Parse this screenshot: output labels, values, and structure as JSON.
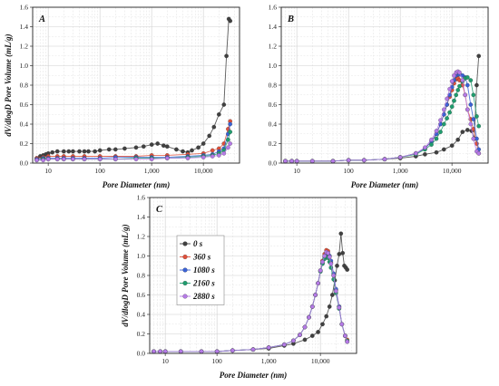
{
  "colors": {
    "0 s": "#404040",
    "360 s": "#e0503a",
    "1080 s": "#3a62d6",
    "2160 s": "#1f9d6e",
    "2880 s": "#b57ae6"
  },
  "legend": {
    "placement": "upper-left",
    "panel": "C"
  },
  "chart_data": [
    {
      "type": "line",
      "panel_label": "A",
      "xlabel": "Pore Diameter (nm)",
      "ylabel": "dV/dlogD Pore Volume (mL/g)",
      "xscale": "log",
      "xlim": [
        5,
        50000
      ],
      "ylim": [
        0,
        1.6
      ],
      "xticks": [
        10,
        100,
        1000,
        10000
      ],
      "xtick_labels": [
        "10",
        "100",
        "1,000",
        "10,000"
      ],
      "yticks": [
        0,
        0.2,
        0.4,
        0.6,
        0.8,
        1.0,
        1.2,
        1.4,
        1.6
      ],
      "ytick_labels": [
        "0.0",
        "0.2",
        "0.4",
        "0.6",
        "0.8",
        "1.0",
        "1.2",
        "1.4",
        "1.6"
      ],
      "grid": true,
      "series": [
        {
          "name": "0 s",
          "x": [
            6,
            7,
            8,
            9,
            10,
            12,
            15,
            20,
            25,
            30,
            40,
            50,
            60,
            80,
            100,
            150,
            200,
            300,
            500,
            700,
            1000,
            1300,
            1700,
            2000,
            3000,
            4000,
            5000,
            6000,
            8000,
            10000,
            13000,
            16000,
            20000,
            25000,
            28000,
            31000,
            33000
          ],
          "y": [
            0.05,
            0.07,
            0.08,
            0.09,
            0.1,
            0.11,
            0.12,
            0.12,
            0.12,
            0.12,
            0.12,
            0.12,
            0.12,
            0.12,
            0.13,
            0.14,
            0.14,
            0.15,
            0.16,
            0.17,
            0.19,
            0.2,
            0.18,
            0.17,
            0.14,
            0.12,
            0.11,
            0.13,
            0.16,
            0.2,
            0.28,
            0.37,
            0.5,
            0.6,
            1.1,
            1.48,
            1.46
          ]
        },
        {
          "name": "360 s",
          "x": [
            6,
            8,
            10,
            15,
            20,
            30,
            50,
            100,
            200,
            500,
            1000,
            2000,
            5000,
            10000,
            15000,
            20000,
            25000,
            30000,
            33000
          ],
          "y": [
            0.05,
            0.06,
            0.07,
            0.07,
            0.07,
            0.07,
            0.07,
            0.07,
            0.07,
            0.07,
            0.08,
            0.08,
            0.09,
            0.1,
            0.13,
            0.15,
            0.2,
            0.35,
            0.43
          ]
        },
        {
          "name": "1080 s",
          "x": [
            6,
            8,
            10,
            15,
            20,
            30,
            50,
            100,
            200,
            500,
            1000,
            2000,
            5000,
            10000,
            15000,
            20000,
            25000,
            30000,
            33000
          ],
          "y": [
            0.04,
            0.05,
            0.05,
            0.05,
            0.05,
            0.05,
            0.05,
            0.05,
            0.06,
            0.06,
            0.06,
            0.06,
            0.07,
            0.08,
            0.09,
            0.12,
            0.15,
            0.3,
            0.4
          ]
        },
        {
          "name": "2160 s",
          "x": [
            6,
            8,
            10,
            15,
            20,
            30,
            50,
            100,
            200,
            500,
            1000,
            2000,
            5000,
            10000,
            15000,
            20000,
            25000,
            30000,
            33000
          ],
          "y": [
            0.03,
            0.04,
            0.04,
            0.04,
            0.04,
            0.04,
            0.04,
            0.04,
            0.04,
            0.05,
            0.05,
            0.05,
            0.06,
            0.07,
            0.08,
            0.1,
            0.13,
            0.24,
            0.32
          ]
        },
        {
          "name": "2880 s",
          "x": [
            6,
            8,
            10,
            15,
            20,
            30,
            50,
            100,
            200,
            500,
            1000,
            2000,
            5000,
            10000,
            15000,
            20000,
            25000,
            30000,
            33000
          ],
          "y": [
            0.03,
            0.03,
            0.04,
            0.04,
            0.04,
            0.04,
            0.04,
            0.04,
            0.04,
            0.04,
            0.04,
            0.05,
            0.05,
            0.06,
            0.07,
            0.08,
            0.1,
            0.16,
            0.2
          ]
        }
      ]
    },
    {
      "type": "line",
      "panel_label": "B",
      "xlabel": "Pore Diameter (nm)",
      "ylabel": "",
      "xscale": "log",
      "xlim": [
        5,
        50000
      ],
      "ylim": [
        0,
        1.6
      ],
      "xticks": [
        10,
        100,
        1000,
        10000
      ],
      "xtick_labels": [
        "10",
        "100",
        "1,000",
        "10,000"
      ],
      "yticks": [
        0,
        0.2,
        0.4,
        0.6,
        0.8,
        1.0,
        1.2,
        1.4,
        1.6
      ],
      "ytick_labels": [
        "0.0",
        "0.2",
        "0.4",
        "0.6",
        "0.8",
        "1.0",
        "1.2",
        "1.4",
        "1.6"
      ],
      "grid": true,
      "series": [
        {
          "name": "0 s",
          "x": [
            6,
            8,
            10,
            20,
            50,
            100,
            200,
            500,
            1000,
            2000,
            3000,
            5000,
            7000,
            10000,
            13000,
            16000,
            20000,
            24000,
            27000,
            30000,
            33000
          ],
          "y": [
            0.02,
            0.02,
            0.02,
            0.02,
            0.02,
            0.03,
            0.03,
            0.04,
            0.05,
            0.07,
            0.09,
            0.11,
            0.14,
            0.18,
            0.24,
            0.32,
            0.34,
            0.33,
            0.25,
            0.8,
            1.1
          ]
        },
        {
          "name": "360 s",
          "x": [
            6,
            8,
            10,
            20,
            50,
            100,
            200,
            500,
            1000,
            2000,
            3000,
            4000,
            5000,
            6000,
            7000,
            8000,
            9000,
            10000,
            11000,
            12000,
            13000,
            14000,
            16000,
            18000,
            20000,
            23000,
            26000,
            30000,
            33000
          ],
          "y": [
            0.02,
            0.02,
            0.02,
            0.02,
            0.02,
            0.03,
            0.03,
            0.04,
            0.06,
            0.1,
            0.15,
            0.22,
            0.3,
            0.4,
            0.5,
            0.6,
            0.68,
            0.75,
            0.82,
            0.86,
            0.87,
            0.85,
            0.8,
            0.7,
            0.55,
            0.45,
            0.35,
            0.2,
            0.1
          ]
        },
        {
          "name": "1080 s",
          "x": [
            6,
            8,
            10,
            20,
            50,
            100,
            200,
            500,
            1000,
            2000,
            3000,
            4000,
            5000,
            6000,
            7000,
            8000,
            9000,
            10000,
            11000,
            12000,
            13000,
            14000,
            16000,
            18000,
            20000,
            23000,
            26000,
            30000,
            33000
          ],
          "y": [
            0.02,
            0.02,
            0.02,
            0.02,
            0.02,
            0.03,
            0.03,
            0.04,
            0.06,
            0.1,
            0.15,
            0.22,
            0.3,
            0.4,
            0.5,
            0.6,
            0.7,
            0.78,
            0.85,
            0.9,
            0.91,
            0.91,
            0.9,
            0.88,
            0.8,
            0.6,
            0.45,
            0.25,
            0.14
          ]
        },
        {
          "name": "2160 s",
          "x": [
            6,
            8,
            10,
            20,
            50,
            100,
            200,
            500,
            1000,
            2000,
            3000,
            4000,
            5000,
            6000,
            7000,
            8000,
            9000,
            10000,
            11000,
            12000,
            13000,
            14000,
            16000,
            18000,
            20000,
            23000,
            26000,
            30000,
            33000
          ],
          "y": [
            0.02,
            0.02,
            0.02,
            0.02,
            0.02,
            0.03,
            0.03,
            0.04,
            0.06,
            0.09,
            0.14,
            0.19,
            0.25,
            0.32,
            0.4,
            0.46,
            0.52,
            0.58,
            0.64,
            0.7,
            0.75,
            0.79,
            0.84,
            0.87,
            0.88,
            0.85,
            0.7,
            0.48,
            0.38
          ]
        },
        {
          "name": "2880 s",
          "x": [
            6,
            8,
            10,
            20,
            50,
            100,
            200,
            500,
            1000,
            2000,
            3000,
            4000,
            5000,
            6000,
            7000,
            8000,
            9000,
            10000,
            11000,
            12000,
            13000,
            14000,
            16000,
            18000,
            20000,
            23000,
            26000,
            30000,
            33000
          ],
          "y": [
            0.02,
            0.02,
            0.02,
            0.02,
            0.02,
            0.03,
            0.03,
            0.04,
            0.06,
            0.1,
            0.16,
            0.24,
            0.33,
            0.44,
            0.55,
            0.66,
            0.76,
            0.84,
            0.9,
            0.93,
            0.94,
            0.93,
            0.85,
            0.7,
            0.55,
            0.4,
            0.25,
            0.12,
            0.1
          ]
        }
      ]
    },
    {
      "type": "line",
      "panel_label": "C",
      "xlabel": "Pore Diameter (nm)",
      "ylabel": "dV/dlogD Pore Volume (mL/g)",
      "xscale": "log",
      "xlim": [
        5,
        50000
      ],
      "ylim": [
        0,
        1.6
      ],
      "xticks": [
        10,
        100,
        1000,
        10000
      ],
      "xtick_labels": [
        "10",
        "100",
        "1,000",
        "10,000"
      ],
      "yticks": [
        0,
        0.2,
        0.4,
        0.6,
        0.8,
        1.0,
        1.2,
        1.4,
        1.6
      ],
      "ytick_labels": [
        "0.0",
        "0.2",
        "0.4",
        "0.6",
        "0.8",
        "1.0",
        "1.2",
        "1.4",
        "1.6"
      ],
      "grid": true,
      "series": [
        {
          "name": "0 s",
          "x": [
            6,
            8,
            10,
            20,
            50,
            100,
            200,
            500,
            1000,
            2000,
            3000,
            5000,
            7000,
            9000,
            11000,
            13000,
            15000,
            17000,
            19000,
            21000,
            23000,
            25000,
            27000,
            29000,
            31000,
            33000
          ],
          "y": [
            0.02,
            0.02,
            0.02,
            0.02,
            0.02,
            0.02,
            0.03,
            0.04,
            0.05,
            0.08,
            0.1,
            0.14,
            0.18,
            0.22,
            0.3,
            0.38,
            0.48,
            0.6,
            0.75,
            0.9,
            1.02,
            1.23,
            1.03,
            0.9,
            0.88,
            0.86
          ]
        },
        {
          "name": "360 s",
          "x": [
            6,
            8,
            10,
            20,
            50,
            100,
            200,
            500,
            1000,
            2000,
            3000,
            4000,
            5000,
            6000,
            7000,
            8000,
            9000,
            10000,
            11000,
            12000,
            13000,
            14000,
            15000,
            16000,
            18000,
            20000,
            23000,
            26000,
            30000,
            33000
          ],
          "y": [
            0.02,
            0.02,
            0.02,
            0.02,
            0.02,
            0.02,
            0.03,
            0.04,
            0.06,
            0.09,
            0.13,
            0.19,
            0.27,
            0.37,
            0.48,
            0.6,
            0.72,
            0.85,
            0.95,
            1.02,
            1.06,
            1.05,
            1.0,
            0.93,
            0.8,
            0.65,
            0.48,
            0.3,
            0.18,
            0.14
          ]
        },
        {
          "name": "1080 s",
          "x": [
            6,
            8,
            10,
            20,
            50,
            100,
            200,
            500,
            1000,
            2000,
            3000,
            4000,
            5000,
            6000,
            7000,
            8000,
            9000,
            10000,
            11000,
            12000,
            13000,
            14000,
            15000,
            16000,
            18000,
            20000,
            23000,
            26000,
            30000,
            33000
          ],
          "y": [
            0.02,
            0.02,
            0.02,
            0.02,
            0.02,
            0.02,
            0.03,
            0.04,
            0.06,
            0.09,
            0.13,
            0.19,
            0.27,
            0.37,
            0.48,
            0.6,
            0.72,
            0.85,
            0.93,
            0.99,
            1.02,
            1.03,
            1.0,
            0.95,
            0.82,
            0.66,
            0.48,
            0.3,
            0.18,
            0.12
          ]
        },
        {
          "name": "2160 s",
          "x": [
            6,
            8,
            10,
            20,
            50,
            100,
            200,
            500,
            1000,
            2000,
            3000,
            4000,
            5000,
            6000,
            7000,
            8000,
            9000,
            10000,
            11000,
            12000,
            13000,
            14000,
            15000,
            16000,
            18000,
            20000,
            23000,
            26000,
            30000,
            33000
          ],
          "y": [
            0.02,
            0.02,
            0.02,
            0.02,
            0.02,
            0.02,
            0.03,
            0.04,
            0.06,
            0.09,
            0.13,
            0.19,
            0.27,
            0.37,
            0.48,
            0.6,
            0.72,
            0.84,
            0.92,
            0.97,
            0.99,
            0.98,
            0.94,
            0.88,
            0.76,
            0.62,
            0.46,
            0.3,
            0.18,
            0.13
          ]
        },
        {
          "name": "2880 s",
          "x": [
            6,
            8,
            10,
            20,
            50,
            100,
            200,
            500,
            1000,
            2000,
            3000,
            4000,
            5000,
            6000,
            7000,
            8000,
            9000,
            10000,
            11000,
            12000,
            13000,
            14000,
            15000,
            16000,
            18000,
            20000,
            23000,
            26000,
            30000,
            33000
          ],
          "y": [
            0.02,
            0.02,
            0.02,
            0.02,
            0.02,
            0.02,
            0.03,
            0.04,
            0.06,
            0.09,
            0.13,
            0.19,
            0.27,
            0.37,
            0.48,
            0.6,
            0.72,
            0.85,
            0.94,
            1.0,
            1.04,
            1.03,
            0.99,
            0.92,
            0.8,
            0.64,
            0.47,
            0.3,
            0.18,
            0.12
          ]
        }
      ]
    }
  ]
}
